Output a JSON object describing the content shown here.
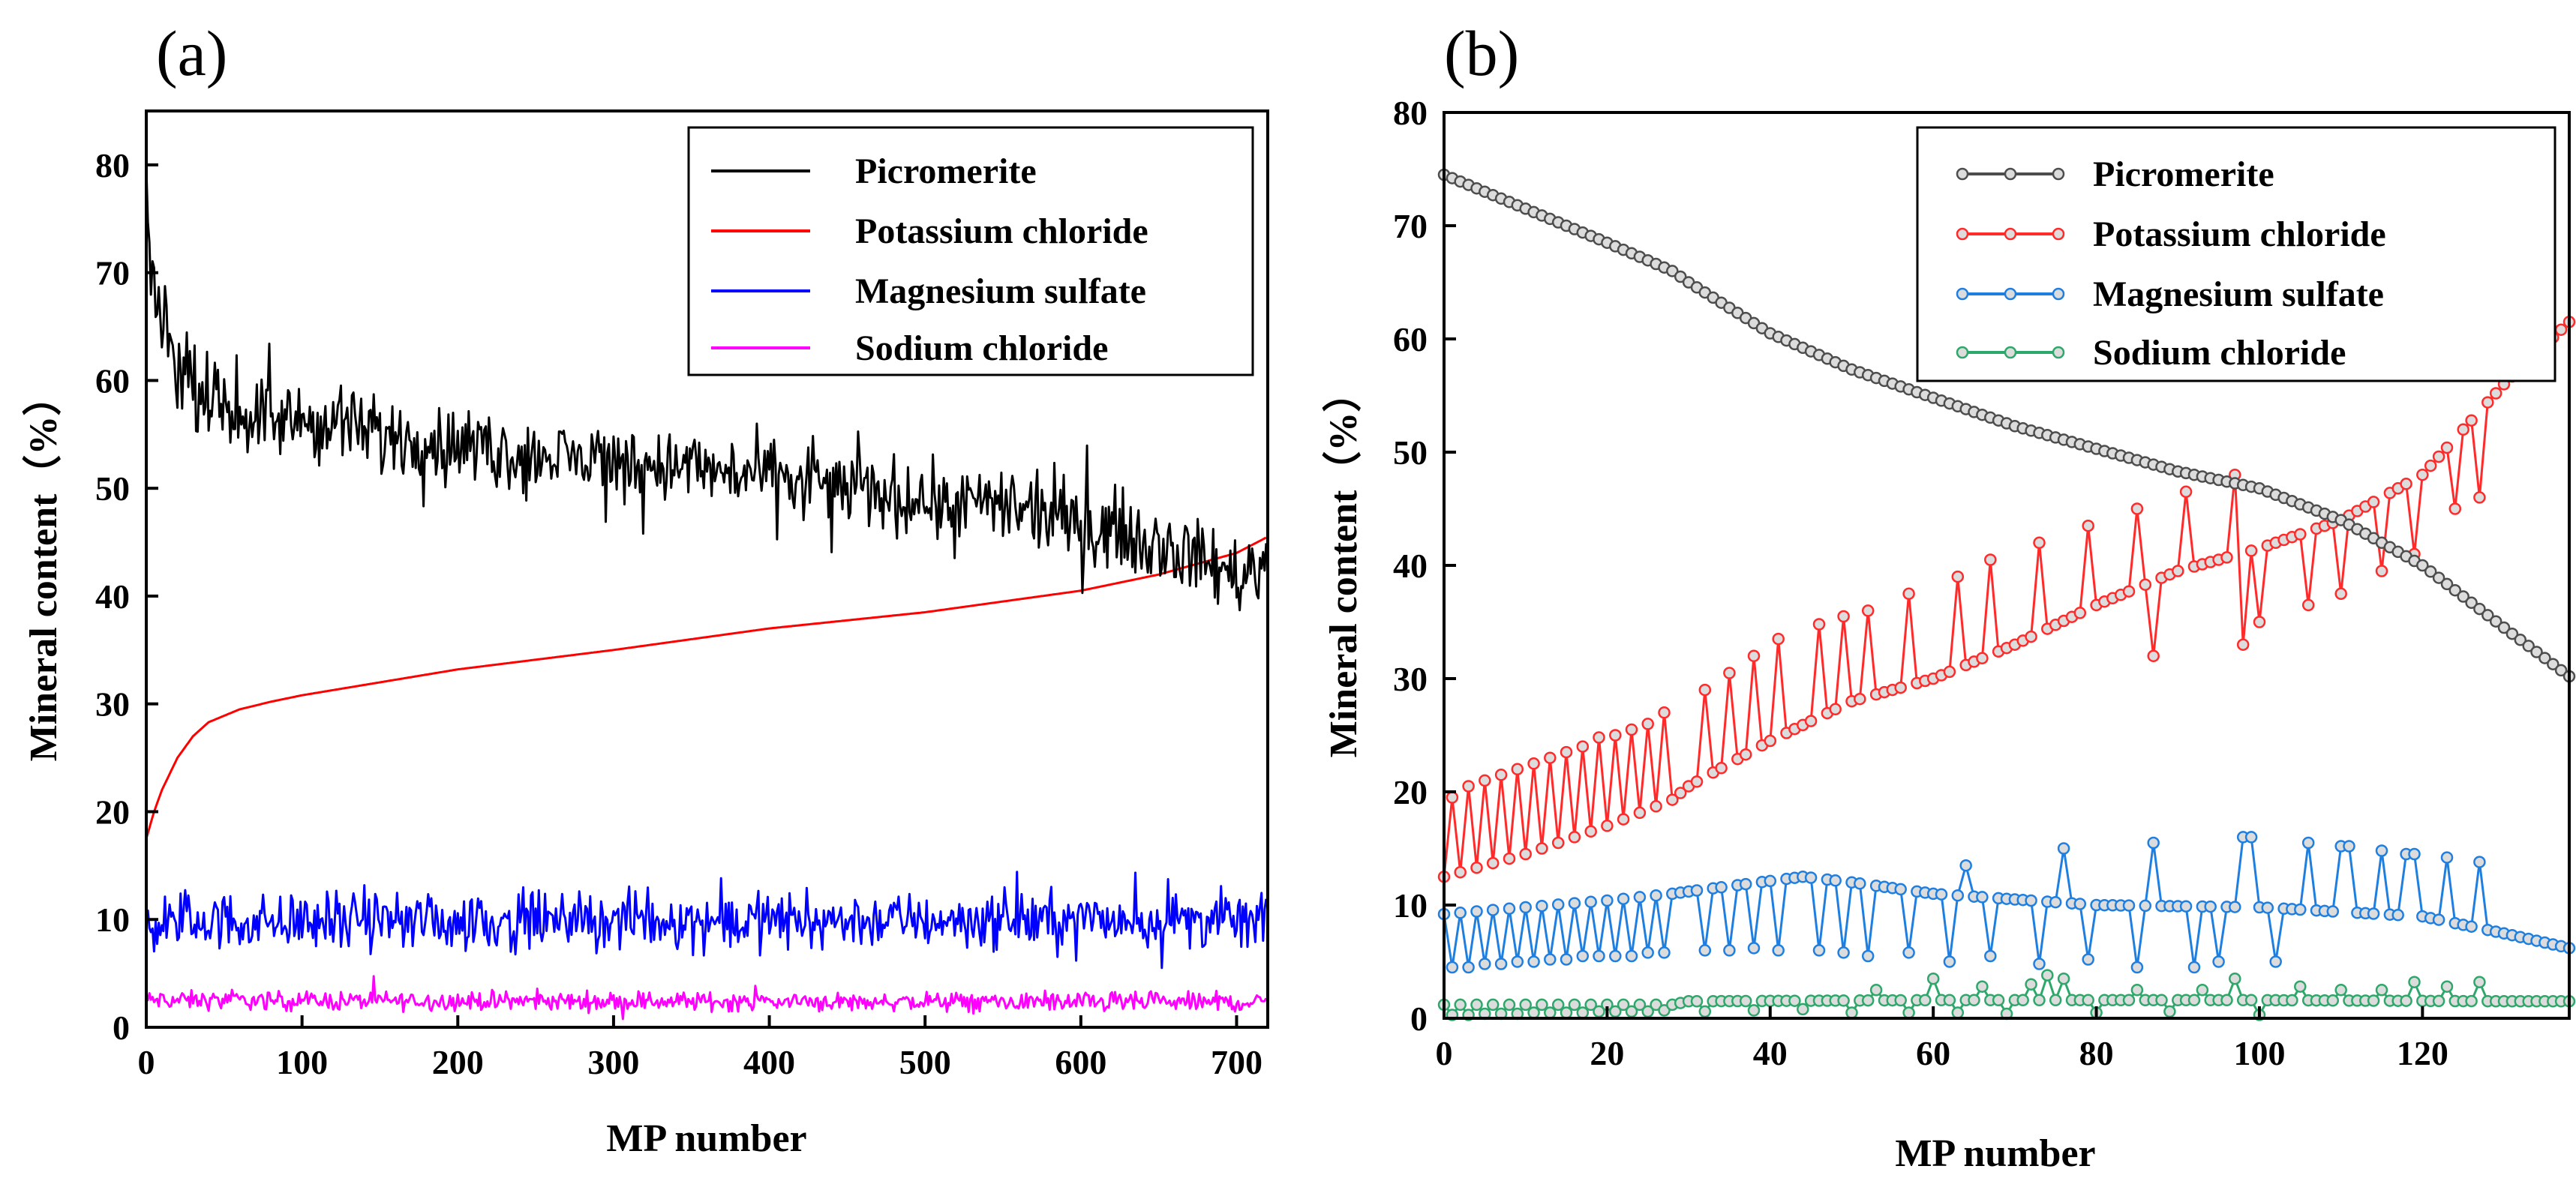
{
  "chart_data": [
    {
      "panel": "(a)",
      "type": "line",
      "xlabel": "MP number",
      "ylabel": "Mineral content（%）",
      "xlim": [
        0,
        720
      ],
      "ylim": [
        0,
        85
      ],
      "xticks": [
        "0",
        "100",
        "200",
        "300",
        "400",
        "500",
        "600",
        "700"
      ],
      "yticks": [
        "0",
        "10",
        "20",
        "30",
        "40",
        "50",
        "60",
        "70",
        "80"
      ],
      "legend_position": "top-right",
      "n_points": 720,
      "series": [
        {
          "name": "Picromerite",
          "color": "#000000",
          "x": [
            0,
            3,
            8,
            15,
            25,
            40,
            60,
            100,
            150,
            200,
            250,
            300,
            350,
            400,
            450,
            500,
            550,
            600,
            650,
            700,
            720
          ],
          "y": [
            76,
            70,
            67,
            63,
            60,
            58,
            57,
            56,
            55,
            54,
            53,
            52.5,
            52,
            51,
            50,
            49,
            48,
            47,
            45,
            42,
            43
          ],
          "noise": 3.2
        },
        {
          "name": "Potassium chloride",
          "color": "#ff0000",
          "x": [
            0,
            5,
            10,
            20,
            30,
            40,
            60,
            80,
            100,
            150,
            200,
            300,
            400,
            500,
            600,
            650,
            700,
            720
          ],
          "y": [
            17.5,
            20,
            22,
            25,
            27,
            28.3,
            29.5,
            30.2,
            30.8,
            32,
            33.2,
            35,
            37,
            38.5,
            40.5,
            42,
            44,
            45.5
          ],
          "noise": 0
        },
        {
          "name": "Magnesium sulfate",
          "color": "#0000ff",
          "x": [
            0,
            720
          ],
          "y": [
            9.8,
            10
          ],
          "noise": 2.4
        },
        {
          "name": "Sodium chloride",
          "color": "#ff00ff",
          "x": [
            0,
            720
          ],
          "y": [
            2.5,
            2.3
          ],
          "noise": 0.8
        }
      ]
    },
    {
      "panel": "(b)",
      "type": "line",
      "xlabel": "MP number",
      "ylabel": "Mineral content（%）",
      "xlim": [
        0,
        138
      ],
      "ylim": [
        0,
        80
      ],
      "xticks": [
        "0",
        "20",
        "40",
        "60",
        "80",
        "100",
        "120"
      ],
      "yticks": [
        "0",
        "10",
        "20",
        "30",
        "40",
        "50",
        "60",
        "70",
        "80"
      ],
      "legend_position": "top-right",
      "n_points": 139,
      "series": [
        {
          "name": "Picromerite",
          "color": "#4d4d4d",
          "x": [
            0,
            10,
            20,
            28,
            30,
            40,
            50,
            60,
            70,
            80,
            90,
            100,
            110,
            120,
            130,
            138
          ],
          "y": [
            74.5,
            71.5,
            68.5,
            66,
            65,
            60.5,
            57.3,
            54.8,
            52.3,
            50.3,
            48.3,
            46.8,
            44,
            40,
            34.5,
            30.2
          ],
          "alternate": []
        },
        {
          "name": "Potassium chloride",
          "color": "#ff2a2a",
          "x": [
            0,
            10,
            20,
            28,
            30,
            40,
            50,
            60,
            70,
            80,
            90,
            100,
            110,
            120,
            130,
            138
          ],
          "y": [
            12.5,
            14.5,
            17,
            19.3,
            20.5,
            24.5,
            28,
            30,
            33,
            36.5,
            39.5,
            41.5,
            44,
            48,
            56,
            61.5
          ],
          "alternate": [
            [
              1,
              19.5
            ],
            [
              3,
              20.5
            ],
            [
              5,
              21
            ],
            [
              7,
              21.5
            ],
            [
              9,
              22
            ],
            [
              11,
              22.5
            ],
            [
              13,
              23
            ],
            [
              15,
              23.5
            ],
            [
              17,
              24
            ],
            [
              19,
              24.8
            ],
            [
              21,
              25
            ],
            [
              23,
              25.5
            ],
            [
              25,
              26
            ],
            [
              27,
              27
            ],
            [
              32,
              29
            ],
            [
              35,
              30.5
            ],
            [
              38,
              32
            ],
            [
              41,
              33.5
            ],
            [
              46,
              34.8
            ],
            [
              49,
              35.5
            ],
            [
              52,
              36
            ],
            [
              57,
              37.5
            ],
            [
              63,
              39
            ],
            [
              67,
              40.5
            ],
            [
              73,
              42
            ],
            [
              79,
              43.5
            ],
            [
              85,
              45
            ],
            [
              87,
              32
            ],
            [
              91,
              46.5
            ],
            [
              97,
              48
            ],
            [
              98,
              33
            ],
            [
              100,
              35
            ],
            [
              106,
              36.5
            ],
            [
              110,
              37.5
            ],
            [
              115,
              39.5
            ],
            [
              119,
              41
            ],
            [
              124,
              45
            ],
            [
              127,
              46
            ]
          ]
        },
        {
          "name": "Magnesium sulfate",
          "color": "#1f7fe0",
          "x": [
            0,
            10,
            20,
            28,
            30,
            44,
            50,
            60,
            80,
            100,
            120,
            130,
            138
          ],
          "y": [
            9.2,
            9.8,
            10.4,
            11,
            11.2,
            12.5,
            12,
            11,
            10,
            9.8,
            9,
            7.5,
            6.2
          ],
          "alternate": [
            [
              1,
              4.5
            ],
            [
              3,
              4.5
            ],
            [
              5,
              4.8
            ],
            [
              7,
              4.8
            ],
            [
              9,
              5
            ],
            [
              11,
              5
            ],
            [
              13,
              5.2
            ],
            [
              15,
              5.2
            ],
            [
              17,
              5.5
            ],
            [
              19,
              5.5
            ],
            [
              21,
              5.5
            ],
            [
              23,
              5.5
            ],
            [
              25,
              5.8
            ],
            [
              27,
              5.8
            ],
            [
              32,
              6
            ],
            [
              35,
              6
            ],
            [
              38,
              6.2
            ],
            [
              41,
              6
            ],
            [
              46,
              6
            ],
            [
              49,
              5.8
            ],
            [
              52,
              5.5
            ],
            [
              57,
              5.8
            ],
            [
              62,
              5
            ],
            [
              64,
              13.5
            ],
            [
              67,
              5.5
            ],
            [
              73,
              4.8
            ],
            [
              76,
              15
            ],
            [
              79,
              5.2
            ],
            [
              85,
              4.5
            ],
            [
              87,
              15.5
            ],
            [
              92,
              4.5
            ],
            [
              95,
              5
            ],
            [
              98,
              16
            ],
            [
              99,
              16
            ],
            [
              102,
              5
            ],
            [
              106,
              15.5
            ],
            [
              110,
              15.2
            ],
            [
              111,
              15.2
            ],
            [
              115,
              14.8
            ],
            [
              118,
              14.5
            ],
            [
              119,
              14.5
            ],
            [
              123,
              14.2
            ],
            [
              127,
              13.8
            ]
          ]
        },
        {
          "name": "Sodium chloride",
          "color": "#2ea86a",
          "x": [
            0,
            28,
            30,
            60,
            90,
            100,
            130,
            138
          ],
          "y": [
            1.2,
            1.2,
            1.5,
            1.6,
            1.6,
            1.6,
            1.5,
            1.5
          ],
          "alternate": [
            [
              1,
              0.3
            ],
            [
              3,
              0.3
            ],
            [
              5,
              0.4
            ],
            [
              7,
              0.4
            ],
            [
              9,
              0.4
            ],
            [
              11,
              0.5
            ],
            [
              13,
              0.5
            ],
            [
              15,
              0.5
            ],
            [
              17,
              0.5
            ],
            [
              19,
              0.6
            ],
            [
              21,
              0.6
            ],
            [
              23,
              0.6
            ],
            [
              25,
              0.6
            ],
            [
              27,
              0.7
            ],
            [
              32,
              0.6
            ],
            [
              38,
              0.7
            ],
            [
              44,
              0.8
            ],
            [
              50,
              0.5
            ],
            [
              53,
              2.5
            ],
            [
              57,
              0.5
            ],
            [
              60,
              3.5
            ],
            [
              63,
              0.5
            ],
            [
              66,
              2.8
            ],
            [
              69,
              0.4
            ],
            [
              72,
              3
            ],
            [
              74,
              3.8
            ],
            [
              76,
              3.5
            ],
            [
              80,
              0.5
            ],
            [
              85,
              2.5
            ],
            [
              89,
              0.6
            ],
            [
              93,
              2.5
            ],
            [
              97,
              3.5
            ],
            [
              100,
              0.3
            ],
            [
              105,
              2.8
            ],
            [
              110,
              2.5
            ],
            [
              115,
              2.5
            ],
            [
              119,
              3.2
            ],
            [
              123,
              2.8
            ],
            [
              127,
              3.2
            ]
          ]
        }
      ]
    }
  ]
}
